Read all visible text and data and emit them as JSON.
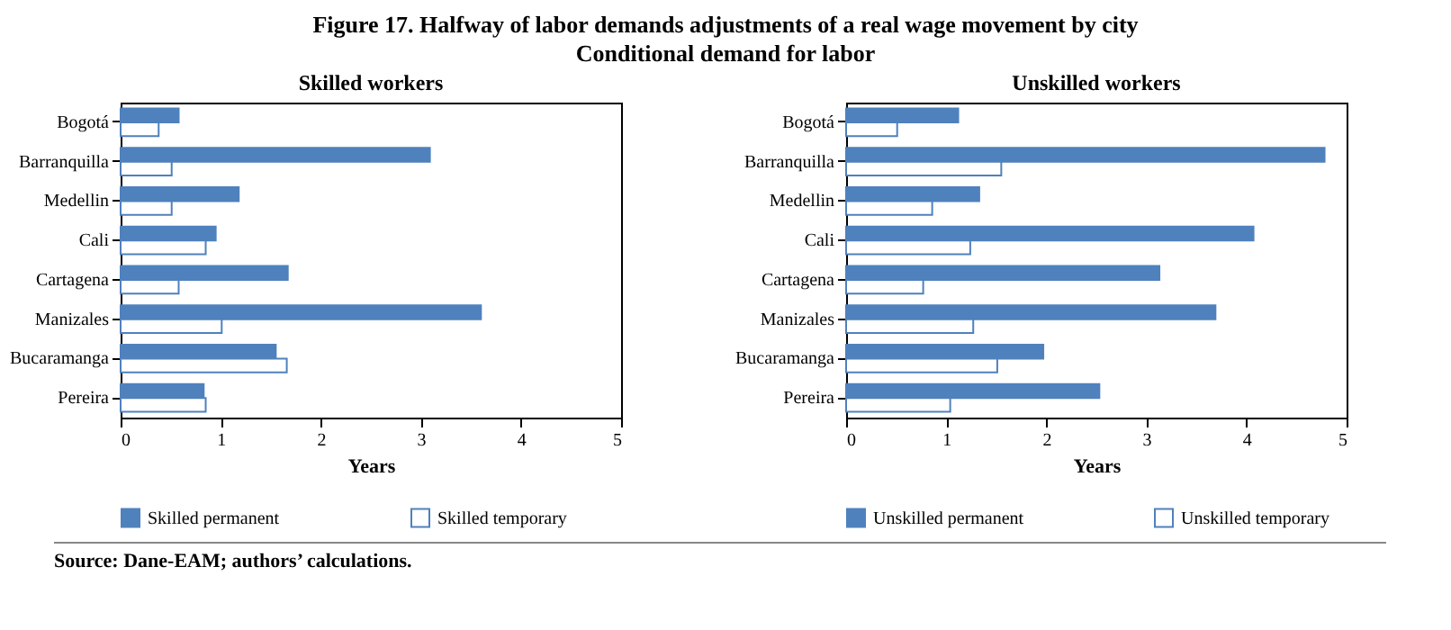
{
  "chart_data": [
    {
      "type": "bar",
      "orientation": "horizontal",
      "title": "Skilled workers",
      "xlabel": "Years",
      "annotations": [
        "Figure 17. Halfway of labor demands adjustments of a real wage movement by city",
        "Conditional demand for labor"
      ],
      "categories": [
        "Bogotá",
        "Barranquilla",
        "Medellin",
        "Cali",
        "Cartagena",
        "Manizales",
        "Bucaramanga",
        "Pereira"
      ],
      "series": [
        {
          "name": "Skilled permanent",
          "color": "#4f81bd",
          "values": [
            0.58,
            3.09,
            1.18,
            0.95,
            1.67,
            3.6,
            1.55,
            0.83
          ]
        },
        {
          "name": "Skilled temporary",
          "color": "#ffffff",
          "values": [
            0.38,
            0.51,
            0.51,
            0.85,
            0.58,
            1.01,
            1.66,
            0.85
          ]
        }
      ],
      "xlim": [
        0,
        5
      ],
      "xticks": [
        0,
        1,
        2,
        3,
        4,
        5
      ],
      "legend": "bottom",
      "grid": false
    },
    {
      "type": "bar",
      "orientation": "horizontal",
      "title": "Unskilled workers",
      "xlabel": "Years",
      "annotations": [
        "Source: Dane-EAM; authors’ calculations."
      ],
      "categories": [
        "Bogotá",
        "Barranquilla",
        "Medellin",
        "Cali",
        "Cartagena",
        "Manizales",
        "Bucaramanga",
        "Pereira"
      ],
      "series": [
        {
          "name": "Unskilled permanent",
          "color": "#4f81bd",
          "values": [
            1.12,
            4.78,
            1.33,
            4.07,
            3.13,
            3.69,
            1.97,
            2.53
          ]
        },
        {
          "name": "Unskilled temporary",
          "color": "#ffffff",
          "values": [
            0.51,
            1.55,
            0.86,
            1.24,
            0.77,
            1.27,
            1.51,
            1.04
          ]
        }
      ],
      "xlim": [
        0,
        5
      ],
      "xticks": [
        0,
        1,
        2,
        3,
        4,
        5
      ],
      "legend": "bottom",
      "grid": false
    }
  ]
}
